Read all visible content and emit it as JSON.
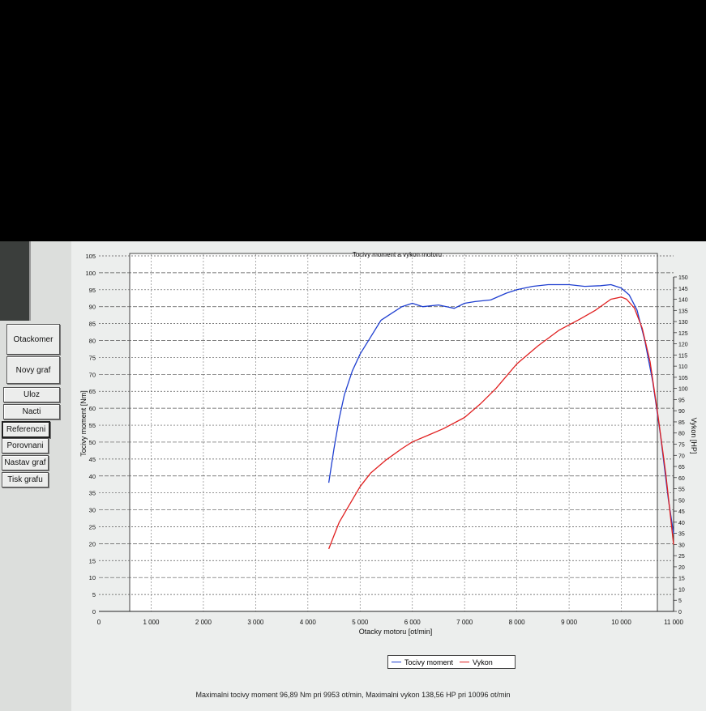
{
  "sidebar": {
    "items": [
      {
        "label": "Otackomer"
      },
      {
        "label": "Novy graf"
      },
      {
        "label": "Uloz"
      },
      {
        "label": "Nacti"
      },
      {
        "label": "Referencni"
      },
      {
        "label": "Porovnani"
      },
      {
        "label": "Nastav graf"
      },
      {
        "label": "Tisk grafu"
      }
    ]
  },
  "status_text": "Maximalni tocivy moment 96,89 Nm pri 9953 ot/min,  Maximalni vykon 138,56 HP pri 10096 ot/min",
  "chart_data": {
    "type": "line",
    "title": "Tocivy moment a vykon motoru",
    "xlabel": "Otacky motoru [ot/min]",
    "ylabel_left": "Tocivy moment [Nm]",
    "ylabel_right": "Vykon [HP]",
    "xlim": [
      0,
      11000
    ],
    "ylim_left": [
      0,
      105
    ],
    "ylim_right": [
      0,
      150
    ],
    "x_ticks": [
      "0",
      "1 000",
      "2 000",
      "3 000",
      "4 000",
      "5 000",
      "6 000",
      "7 000",
      "8 000",
      "9 000",
      "10 000",
      "11 000"
    ],
    "y_ticks_left": [
      "0",
      "5",
      "10",
      "15",
      "20",
      "25",
      "30",
      "35",
      "40",
      "45",
      "50",
      "55",
      "60",
      "65",
      "70",
      "75",
      "80",
      "85",
      "90",
      "95",
      "100",
      "105"
    ],
    "y_ticks_right": [
      "0",
      "5",
      "10",
      "15",
      "20",
      "25",
      "30",
      "35",
      "40",
      "45",
      "50",
      "55",
      "60",
      "65",
      "70",
      "75",
      "80",
      "85",
      "90",
      "95",
      "100",
      "105",
      "110",
      "115",
      "120",
      "125",
      "130",
      "135",
      "140",
      "145",
      "150"
    ],
    "grid": true,
    "legend": "bottom-center",
    "series": [
      {
        "name": "Tocivy moment",
        "color": "#1f3fd0",
        "axis": "left",
        "x": [
          4400,
          4500,
          4600,
          4700,
          4850,
          5000,
          5200,
          5400,
          5600,
          5800,
          6000,
          6200,
          6500,
          6800,
          7000,
          7200,
          7500,
          7800,
          8000,
          8300,
          8600,
          9000,
          9300,
          9600,
          9800,
          10000,
          10150,
          10300,
          10450,
          10600,
          10750,
          10900,
          11000
        ],
        "y": [
          38,
          48,
          57,
          64,
          71,
          76,
          81,
          86,
          88,
          90,
          91,
          90,
          90.5,
          89.5,
          91,
          91.5,
          92,
          94,
          95,
          96,
          96.5,
          96.5,
          96,
          96.2,
          96.5,
          95.5,
          93.5,
          89,
          80,
          68,
          52,
          33,
          23
        ]
      },
      {
        "name": "Vykon",
        "color": "#e02020",
        "axis": "right",
        "x": [
          4400,
          4500,
          4600,
          4800,
          5000,
          5200,
          5500,
          5800,
          6000,
          6300,
          6600,
          7000,
          7300,
          7600,
          8000,
          8400,
          8800,
          9200,
          9500,
          9800,
          10000,
          10100,
          10250,
          10400,
          10550,
          10700,
          10850,
          11000
        ],
        "y": [
          28,
          34,
          40,
          48,
          56,
          62,
          68,
          73,
          76,
          79,
          82,
          87,
          93,
          100,
          111,
          119,
          126,
          131,
          135,
          140,
          141,
          140,
          136,
          127,
          112,
          88,
          62,
          30
        ]
      }
    ]
  }
}
